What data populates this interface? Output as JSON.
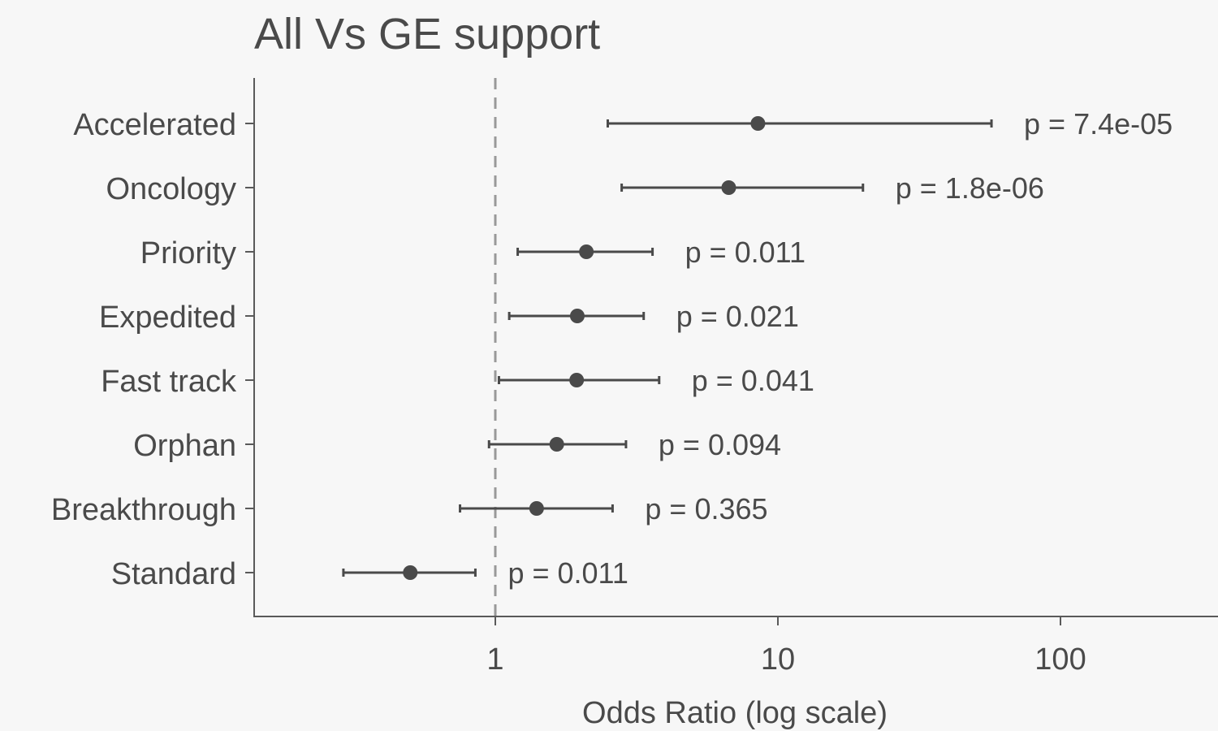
{
  "chart_data": {
    "type": "scatter",
    "subtype": "forest-plot",
    "title": "All Vs GE support",
    "xlabel": "Odds Ratio (log scale)",
    "ylabel": "",
    "x_scale": "log",
    "xlim": [
      0.13,
      300
    ],
    "x_ticks": [
      1,
      10,
      100
    ],
    "x_tick_labels": [
      "1",
      "10",
      "100"
    ],
    "reference_line": 1,
    "grid": false,
    "legend": "none",
    "categories": [
      "Accelerated",
      "Oncology",
      "Priority",
      "Expedited",
      "Fast track",
      "Orphan",
      "Breakthrough",
      "Standard"
    ],
    "odds_ratio": [
      8.5,
      6.7,
      2.1,
      1.95,
      1.94,
      1.65,
      1.4,
      0.5
    ],
    "ci_lower": [
      2.5,
      2.8,
      1.2,
      1.12,
      1.03,
      0.95,
      0.75,
      0.29
    ],
    "ci_upper": [
      57,
      20,
      3.6,
      3.35,
      3.8,
      2.9,
      2.6,
      0.85
    ],
    "p_labels": [
      "p = 7.4e-05",
      "p = 1.8e-06",
      "p = 0.011",
      "p = 0.021",
      "p = 0.041",
      "p = 0.094",
      "p = 0.365",
      "p = 0.011"
    ],
    "colors": {
      "point": "#4a4a4a",
      "axis": "#5a5a5a",
      "reference": "#999999",
      "background": "#f7f7f7"
    }
  }
}
